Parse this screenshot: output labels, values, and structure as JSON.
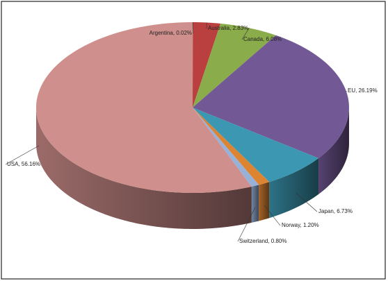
{
  "chart_data": {
    "type": "pie",
    "three_d": true,
    "value_labels": [
      "Argentina, 0.02%",
      "Australia, 2.83%",
      "Canada, 6.08%",
      "EU, 26.19%",
      "Japan, 6.73%",
      "Norway, 1.20%",
      "Switzerland, 0.80%",
      "USA, 56.16%"
    ],
    "values": [
      0.02,
      2.83,
      6.08,
      26.19,
      6.73,
      1.2,
      0.8,
      56.16
    ],
    "colors": [
      "#9bbb59",
      "#b9403f",
      "#8aac4b",
      "#725895",
      "#3c98b2",
      "#dc8431",
      "#98b1d8",
      "#cf8f8c"
    ]
  }
}
